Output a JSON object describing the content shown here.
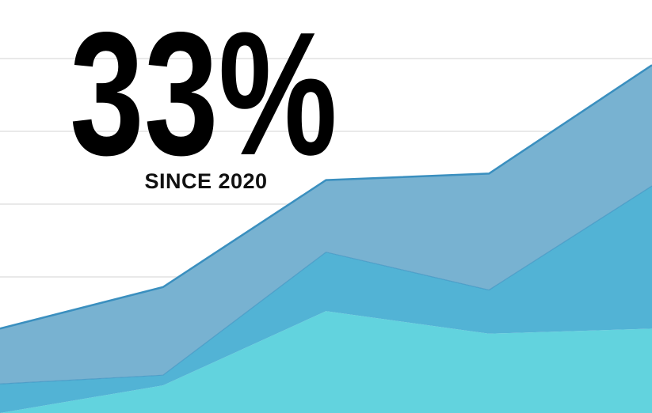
{
  "chart_data": {
    "type": "area",
    "stacked": true,
    "title": "33%",
    "subtitle": "SINCE 2020",
    "categories": [
      null,
      null,
      null,
      null,
      null
    ],
    "series": [
      {
        "color": "#62d3de",
        "values": [
          0.13,
          0.51,
          1.53,
          1.22,
          1.29
        ]
      },
      {
        "color": "#52b3d5",
        "values": [
          0.4,
          0.14,
          0.81,
          0.6,
          1.96
        ]
      },
      {
        "color": "#78b2d1",
        "values": [
          0.76,
          1.21,
          0.99,
          1.6,
          1.66
        ]
      }
    ],
    "line_color": "#3a8fbf",
    "ylim": [
      0,
      6
    ],
    "yticks": [
      2,
      3,
      4,
      5
    ],
    "grid": true
  }
}
